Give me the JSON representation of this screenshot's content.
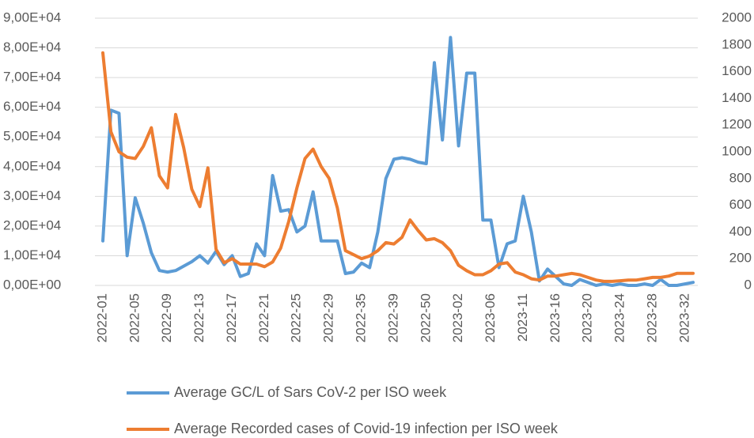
{
  "chart_data": {
    "type": "line",
    "categories": [
      "2022-01",
      null,
      null,
      null,
      "2022-05",
      null,
      null,
      null,
      "2022-09",
      null,
      null,
      null,
      "2022-13",
      null,
      null,
      null,
      "2022-17",
      null,
      null,
      null,
      "2022-21",
      null,
      null,
      null,
      "2022-25",
      null,
      null,
      null,
      "2022-29",
      null,
      null,
      null,
      "2022-35",
      null,
      null,
      null,
      "2022-39",
      null,
      null,
      null,
      "2022-50",
      null,
      null,
      null,
      "2023-02",
      null,
      null,
      null,
      "2023-06",
      null,
      null,
      null,
      "2023-11",
      null,
      null,
      null,
      "2023-16",
      null,
      null,
      null,
      "2023-20",
      null,
      null,
      null,
      "2023-24",
      null,
      null,
      null,
      "2023-28",
      null,
      null,
      null,
      "2023-32",
      null
    ],
    "series": [
      {
        "name": "Average GC/L of Sars CoV-2 per ISO week",
        "color": "#5b9bd5",
        "axis": "y",
        "values": [
          15000,
          59000,
          58000,
          10000,
          29500,
          21000,
          11000,
          5000,
          4500,
          5000,
          6500,
          8000,
          10000,
          7500,
          11500,
          7000,
          10000,
          3000,
          4000,
          14000,
          10000,
          37000,
          25000,
          25500,
          18000,
          20000,
          31500,
          15000,
          15000,
          15000,
          4000,
          4500,
          7500,
          6000,
          18000,
          36000,
          42500,
          43000,
          42500,
          41500,
          41000,
          75000,
          49000,
          83500,
          47000,
          71500,
          71500,
          22000,
          22000,
          6000,
          14000,
          15000,
          30000,
          18000,
          1500,
          5500,
          3000,
          500,
          0,
          2000,
          1000,
          0,
          500,
          0,
          500,
          0,
          0,
          500,
          0,
          2000,
          0,
          0,
          500,
          1000
        ]
      },
      {
        "name": "Average Recorded cases of Covid-19 infection per ISO week",
        "color": "#ed7d31",
        "axis": "y2",
        "values": [
          1740,
          1150,
          1000,
          960,
          950,
          1040,
          1180,
          820,
          730,
          1280,
          1030,
          720,
          590,
          880,
          270,
          170,
          200,
          160,
          160,
          160,
          140,
          175,
          280,
          480,
          730,
          950,
          1020,
          890,
          800,
          580,
          260,
          230,
          200,
          220,
          260,
          320,
          310,
          360,
          490,
          410,
          340,
          350,
          320,
          260,
          150,
          110,
          80,
          80,
          110,
          160,
          170,
          100,
          80,
          50,
          40,
          70,
          70,
          80,
          90,
          80,
          60,
          40,
          30,
          30,
          35,
          40,
          40,
          50,
          60,
          60,
          70,
          90,
          90,
          90
        ]
      }
    ],
    "ylim": [
      0,
      90000
    ],
    "yticks": [
      {
        "value": 0,
        "label": "0,00E+00"
      },
      {
        "value": 10000,
        "label": "1,00E+04"
      },
      {
        "value": 20000,
        "label": "2,00E+04"
      },
      {
        "value": 30000,
        "label": "3,00E+04"
      },
      {
        "value": 40000,
        "label": "4,00E+04"
      },
      {
        "value": 50000,
        "label": "5,00E+04"
      },
      {
        "value": 60000,
        "label": "6,00E+04"
      },
      {
        "value": 70000,
        "label": "7,00E+04"
      },
      {
        "value": 80000,
        "label": "8,00E+04"
      },
      {
        "value": 90000,
        "label": "9,00E+04"
      }
    ],
    "y2lim": [
      0,
      2000
    ],
    "y2ticks": [
      0,
      200,
      400,
      600,
      800,
      1000,
      1200,
      1400,
      1600,
      1800,
      2000
    ],
    "grid": true
  }
}
